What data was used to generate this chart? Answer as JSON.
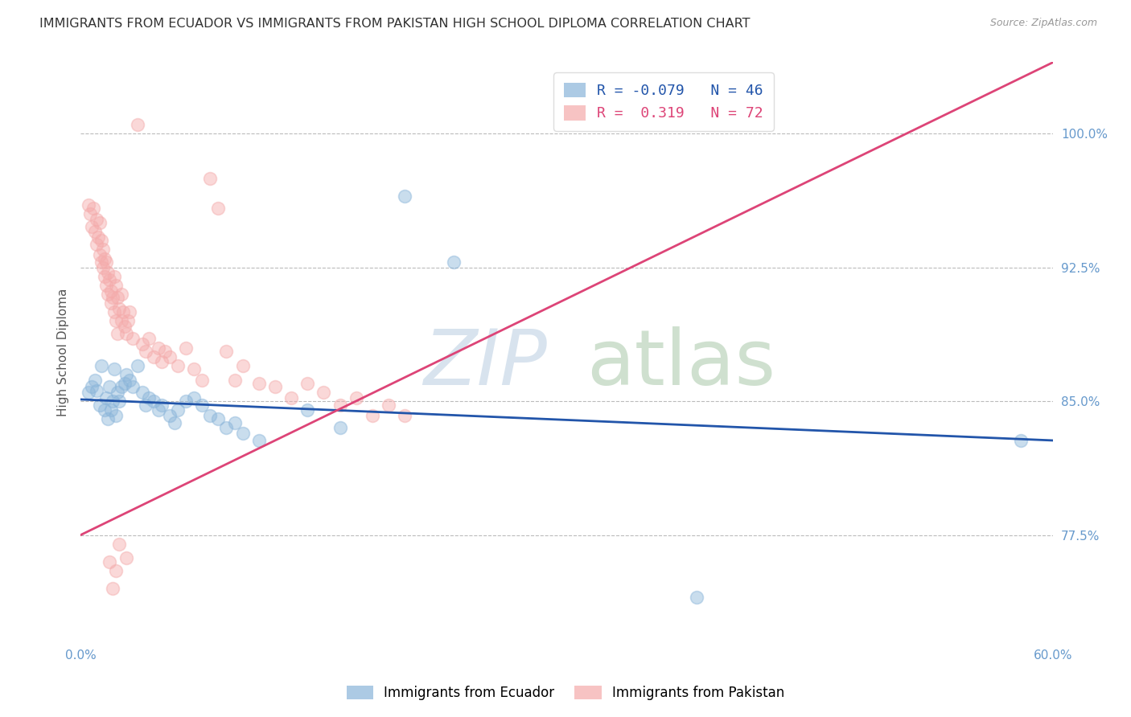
{
  "title": "IMMIGRANTS FROM ECUADOR VS IMMIGRANTS FROM PAKISTAN HIGH SCHOOL DIPLOMA CORRELATION CHART",
  "source": "Source: ZipAtlas.com",
  "ylabel": "High School Diploma",
  "yticks": [
    0.775,
    0.85,
    0.925,
    1.0
  ],
  "ytick_labels": [
    "77.5%",
    "85.0%",
    "92.5%",
    "100.0%"
  ],
  "xmin": 0.0,
  "xmax": 0.6,
  "ymin": 0.715,
  "ymax": 1.04,
  "ecuador_color": "#89B4D9",
  "pakistan_color": "#F4AAAA",
  "ecuador_line_color": "#2255AA",
  "pakistan_line_color": "#DD4477",
  "ecuador_line_x0": 0.0,
  "ecuador_line_y0": 0.851,
  "ecuador_line_x1": 0.6,
  "ecuador_line_y1": 0.828,
  "pakistan_line_x0": 0.0,
  "pakistan_line_y0": 0.775,
  "pakistan_line_x1": 0.6,
  "pakistan_line_y1": 1.04,
  "ecuador_scatter": [
    [
      0.005,
      0.855
    ],
    [
      0.007,
      0.858
    ],
    [
      0.009,
      0.862
    ],
    [
      0.01,
      0.856
    ],
    [
      0.012,
      0.848
    ],
    [
      0.013,
      0.87
    ],
    [
      0.015,
      0.845
    ],
    [
      0.016,
      0.852
    ],
    [
      0.017,
      0.84
    ],
    [
      0.018,
      0.858
    ],
    [
      0.019,
      0.845
    ],
    [
      0.02,
      0.85
    ],
    [
      0.021,
      0.868
    ],
    [
      0.022,
      0.842
    ],
    [
      0.023,
      0.855
    ],
    [
      0.024,
      0.85
    ],
    [
      0.025,
      0.858
    ],
    [
      0.027,
      0.86
    ],
    [
      0.028,
      0.865
    ],
    [
      0.03,
      0.862
    ],
    [
      0.032,
      0.858
    ],
    [
      0.035,
      0.87
    ],
    [
      0.038,
      0.855
    ],
    [
      0.04,
      0.848
    ],
    [
      0.042,
      0.852
    ],
    [
      0.045,
      0.85
    ],
    [
      0.048,
      0.845
    ],
    [
      0.05,
      0.848
    ],
    [
      0.055,
      0.842
    ],
    [
      0.058,
      0.838
    ],
    [
      0.06,
      0.845
    ],
    [
      0.065,
      0.85
    ],
    [
      0.07,
      0.852
    ],
    [
      0.075,
      0.848
    ],
    [
      0.08,
      0.842
    ],
    [
      0.085,
      0.84
    ],
    [
      0.09,
      0.835
    ],
    [
      0.095,
      0.838
    ],
    [
      0.1,
      0.832
    ],
    [
      0.11,
      0.828
    ],
    [
      0.14,
      0.845
    ],
    [
      0.16,
      0.835
    ],
    [
      0.2,
      0.965
    ],
    [
      0.23,
      0.928
    ],
    [
      0.38,
      0.74
    ],
    [
      0.58,
      0.828
    ]
  ],
  "pakistan_scatter": [
    [
      0.005,
      0.96
    ],
    [
      0.006,
      0.955
    ],
    [
      0.007,
      0.948
    ],
    [
      0.008,
      0.958
    ],
    [
      0.009,
      0.945
    ],
    [
      0.01,
      0.952
    ],
    [
      0.01,
      0.938
    ],
    [
      0.011,
      0.942
    ],
    [
      0.012,
      0.95
    ],
    [
      0.012,
      0.932
    ],
    [
      0.013,
      0.94
    ],
    [
      0.013,
      0.928
    ],
    [
      0.014,
      0.935
    ],
    [
      0.014,
      0.925
    ],
    [
      0.015,
      0.93
    ],
    [
      0.015,
      0.92
    ],
    [
      0.016,
      0.928
    ],
    [
      0.016,
      0.915
    ],
    [
      0.017,
      0.922
    ],
    [
      0.017,
      0.91
    ],
    [
      0.018,
      0.918
    ],
    [
      0.019,
      0.912
    ],
    [
      0.019,
      0.905
    ],
    [
      0.02,
      0.908
    ],
    [
      0.021,
      0.92
    ],
    [
      0.021,
      0.9
    ],
    [
      0.022,
      0.915
    ],
    [
      0.022,
      0.895
    ],
    [
      0.023,
      0.908
    ],
    [
      0.023,
      0.888
    ],
    [
      0.024,
      0.902
    ],
    [
      0.025,
      0.91
    ],
    [
      0.025,
      0.895
    ],
    [
      0.026,
      0.9
    ],
    [
      0.027,
      0.892
    ],
    [
      0.028,
      0.888
    ],
    [
      0.029,
      0.895
    ],
    [
      0.03,
      0.9
    ],
    [
      0.032,
      0.885
    ],
    [
      0.035,
      1.005
    ],
    [
      0.038,
      0.882
    ],
    [
      0.04,
      0.878
    ],
    [
      0.042,
      0.885
    ],
    [
      0.045,
      0.875
    ],
    [
      0.048,
      0.88
    ],
    [
      0.05,
      0.872
    ],
    [
      0.052,
      0.878
    ],
    [
      0.055,
      0.875
    ],
    [
      0.06,
      0.87
    ],
    [
      0.065,
      0.88
    ],
    [
      0.07,
      0.868
    ],
    [
      0.075,
      0.862
    ],
    [
      0.08,
      0.975
    ],
    [
      0.085,
      0.958
    ],
    [
      0.09,
      0.878
    ],
    [
      0.095,
      0.862
    ],
    [
      0.1,
      0.87
    ],
    [
      0.11,
      0.86
    ],
    [
      0.12,
      0.858
    ],
    [
      0.13,
      0.852
    ],
    [
      0.14,
      0.86
    ],
    [
      0.15,
      0.855
    ],
    [
      0.16,
      0.848
    ],
    [
      0.17,
      0.852
    ],
    [
      0.018,
      0.76
    ],
    [
      0.02,
      0.745
    ],
    [
      0.022,
      0.755
    ],
    [
      0.024,
      0.77
    ],
    [
      0.028,
      0.762
    ],
    [
      0.18,
      0.842
    ],
    [
      0.19,
      0.848
    ],
    [
      0.2,
      0.842
    ]
  ],
  "watermark_zip": "ZIP",
  "watermark_atlas": "atlas",
  "watermark_color_zip": "#C8D8E8",
  "watermark_color_atlas": "#A8C8A8",
  "background_color": "#FFFFFF",
  "title_color": "#333333",
  "tick_color": "#6699CC",
  "grid_color": "#BBBBBB",
  "title_fontsize": 11.5,
  "axis_label_fontsize": 11,
  "tick_fontsize": 11,
  "legend_ecuador": "R = -0.079   N = 46",
  "legend_pakistan": "R =  0.319   N = 72"
}
